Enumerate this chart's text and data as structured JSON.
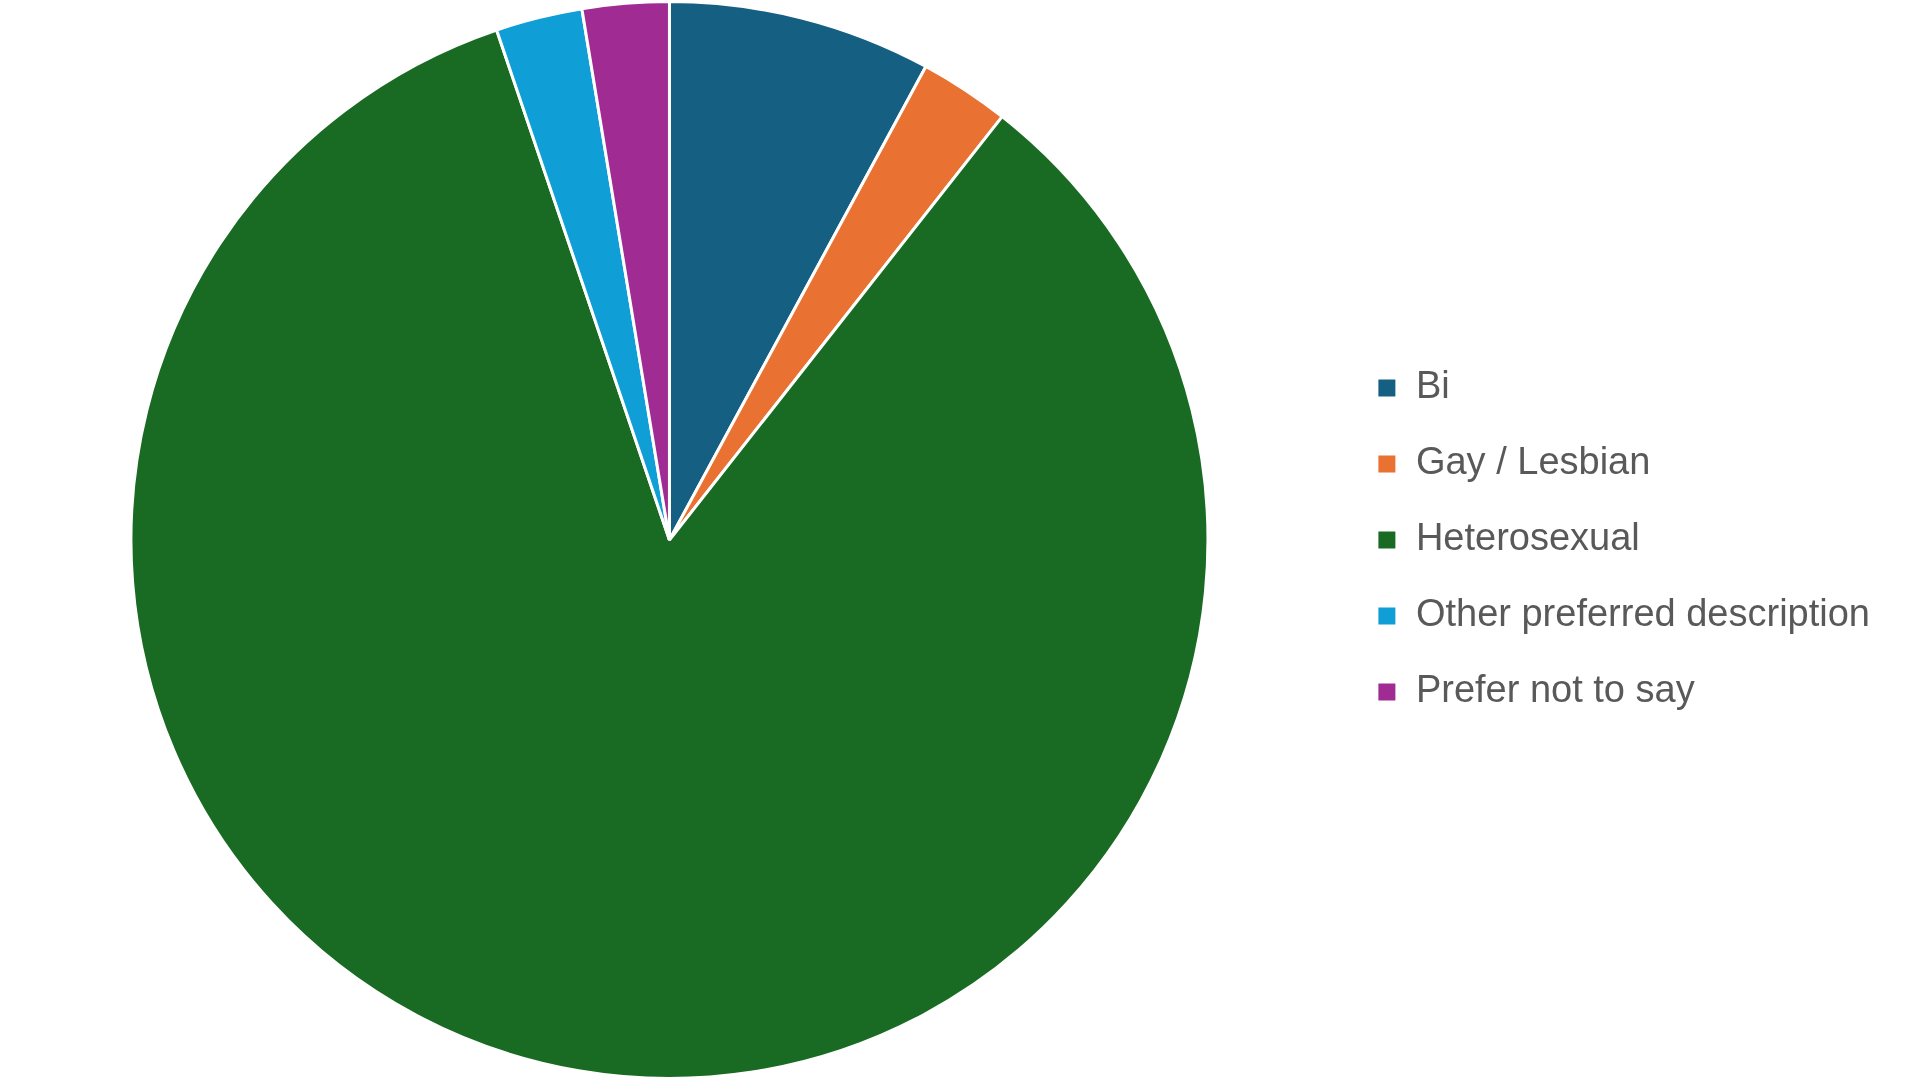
{
  "chart_data": {
    "type": "pie",
    "categories": [
      "Bi",
      "Gay / Lesbian",
      "Heterosexual",
      "Other preferred description",
      "Prefer not to say"
    ],
    "values": [
      7.9,
      2.7,
      84.2,
      2.6,
      2.6
    ],
    "colors": [
      "#156082",
      "#e97132",
      "#196b24",
      "#0f9ed5",
      "#a02b93"
    ],
    "legend": "right"
  }
}
